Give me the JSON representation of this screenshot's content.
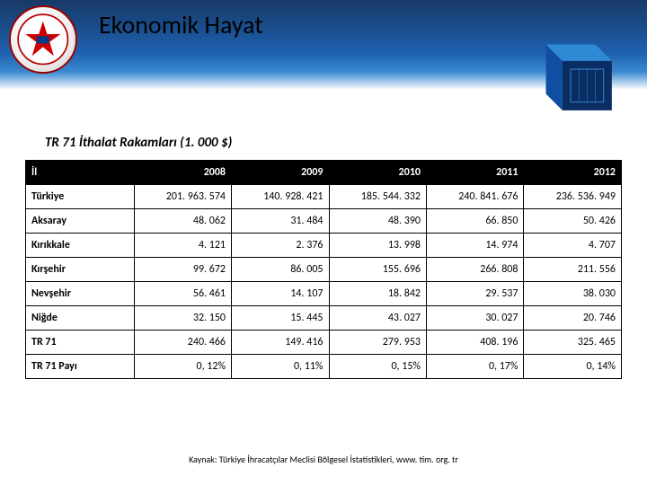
{
  "title": "Ekonomik Hayat",
  "subtitle": "TR 71 İthalat Rakamları (1. 000 $)",
  "source": "Kaynak: Türkiye İhracatçılar Meclisi Bölgesel İstatistikleri, www. tim. org. tr",
  "table": {
    "header_bg": "#000000",
    "header_fg": "#ffffff",
    "border_color": "#000000",
    "font_size": 12,
    "columns": [
      {
        "label": "İl",
        "align": "left",
        "width": 120
      },
      {
        "label": "2008",
        "align": "right",
        "width": 108
      },
      {
        "label": "2009",
        "align": "right",
        "width": 108
      },
      {
        "label": "2010",
        "align": "right",
        "width": 108
      },
      {
        "label": "2011",
        "align": "right",
        "width": 108
      },
      {
        "label": "2012",
        "align": "right",
        "width": 108
      }
    ],
    "rows": [
      {
        "label": "Türkiye",
        "bold": true,
        "cells": [
          "201. 963. 574",
          "140. 928. 421",
          "185. 544. 332",
          "240. 841. 676",
          "236. 536. 949"
        ]
      },
      {
        "label": "Aksaray",
        "bold": true,
        "cells": [
          "48. 062",
          "31. 484",
          "48. 390",
          "66. 850",
          "50. 426"
        ]
      },
      {
        "label": "Kırıkkale",
        "bold": true,
        "cells": [
          "4. 121",
          "2. 376",
          "13. 998",
          "14. 974",
          "4. 707"
        ]
      },
      {
        "label": "Kırşehir",
        "bold": true,
        "cells": [
          "99. 672",
          "86. 005",
          "155. 696",
          "266. 808",
          "211. 556"
        ]
      },
      {
        "label": "Nevşehir",
        "bold": true,
        "cells": [
          "56. 461",
          "14. 107",
          "18. 842",
          "29. 537",
          "38. 030"
        ]
      },
      {
        "label": "Niğde",
        "bold": true,
        "cells": [
          "32. 150",
          "15. 445",
          "43. 027",
          "30. 027",
          "20. 746"
        ]
      },
      {
        "label": "TR 71",
        "bold": true,
        "cells": [
          "240. 466",
          "149. 416",
          "279. 953",
          "408. 196",
          "325. 465"
        ]
      },
      {
        "label": "TR 71 Payı",
        "bold": true,
        "cells": [
          "0, 12%",
          "0, 11%",
          "0, 15%",
          "0, 17%",
          "0, 14%"
        ]
      }
    ]
  },
  "colors": {
    "band_gradient": [
      "#173a66",
      "#1a4d8c",
      "#1f62b0",
      "#3a8ad0",
      "#ffffff"
    ],
    "cube_front": "#0a2e63",
    "cube_side": "#0f4ea3",
    "cube_top": "#2f8ad6"
  }
}
